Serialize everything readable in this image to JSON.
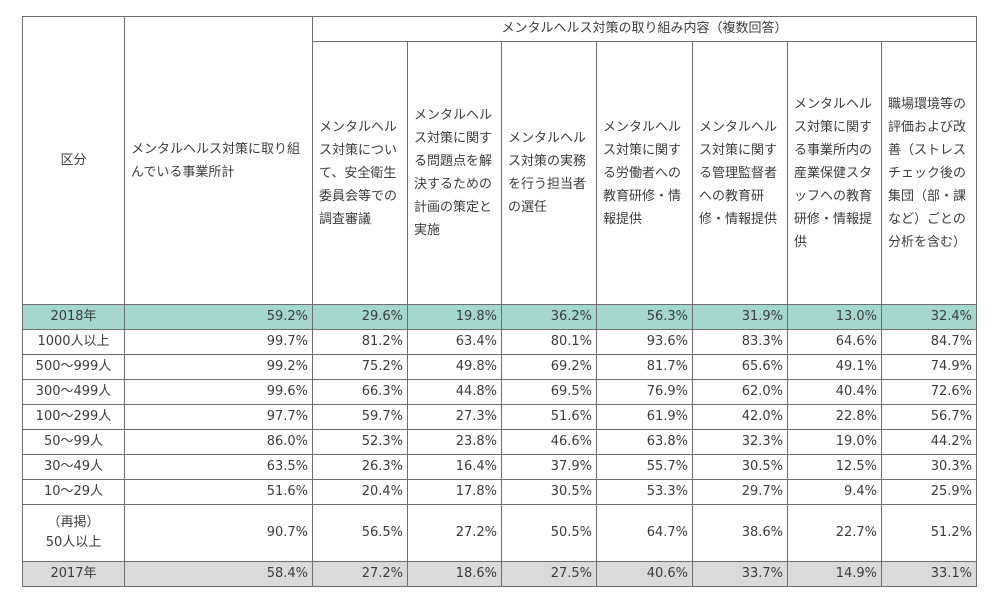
{
  "header": {
    "category": "区分",
    "total": "メンタルヘルス対策に取り組んでいる事業所計",
    "group": "メンタルヘルス対策の取り組み内容（複数回答）",
    "columns": [
      "メンタルヘルス対策について、安全衛生委員会等での調査審議",
      "メンタルヘルス対策に関する問題点を解決するための計画の策定と実施",
      "メンタルヘルス対策の実務を行う担当者の選任",
      "メンタルヘルス対策に関する労働者への教育研修・情報提供",
      "メンタルヘルス対策に関する管理監督者への教育研修・情報提供",
      "メンタルヘルス対策に関する事業所内の産業保健スタッフへの教育研修・情報提供",
      "職場環境等の評価および改善（ストレスチェック後の集団（部・課など）ごとの分析を含む）"
    ]
  },
  "colors": {
    "highlight_row": "#a4d8ce",
    "previous_year_row": "#dadada"
  },
  "rows": [
    {
      "label": "2018年",
      "values": [
        "59.2%",
        "29.6%",
        "19.8%",
        "36.2%",
        "56.3%",
        "31.9%",
        "13.0%",
        "32.4%"
      ]
    },
    {
      "label": "1000人以上",
      "values": [
        "99.7%",
        "81.2%",
        "63.4%",
        "80.1%",
        "93.6%",
        "83.3%",
        "64.6%",
        "84.7%"
      ]
    },
    {
      "label": "500～999人",
      "values": [
        "99.2%",
        "75.2%",
        "49.8%",
        "69.2%",
        "81.7%",
        "65.6%",
        "49.1%",
        "74.9%"
      ]
    },
    {
      "label": "300～499人",
      "values": [
        "99.6%",
        "66.3%",
        "44.8%",
        "69.5%",
        "76.9%",
        "62.0%",
        "40.4%",
        "72.6%"
      ]
    },
    {
      "label": "100～299人",
      "values": [
        "97.7%",
        "59.7%",
        "27.3%",
        "51.6%",
        "61.9%",
        "42.0%",
        "22.8%",
        "56.7%"
      ]
    },
    {
      "label": "50～99人",
      "values": [
        "86.0%",
        "52.3%",
        "23.8%",
        "46.6%",
        "63.8%",
        "32.3%",
        "19.0%",
        "44.2%"
      ]
    },
    {
      "label": "30～49人",
      "values": [
        "63.5%",
        "26.3%",
        "16.4%",
        "37.9%",
        "55.7%",
        "30.5%",
        "12.5%",
        "30.3%"
      ]
    },
    {
      "label": "10～29人",
      "values": [
        "51.6%",
        "20.4%",
        "17.8%",
        "30.5%",
        "53.3%",
        "29.7%",
        "9.4%",
        "25.9%"
      ]
    },
    {
      "label": "（再掲）\n50人以上",
      "values": [
        "90.7%",
        "56.5%",
        "27.2%",
        "50.5%",
        "64.7%",
        "38.6%",
        "22.7%",
        "51.2%"
      ]
    },
    {
      "label": "2017年",
      "values": [
        "58.4%",
        "27.2%",
        "18.6%",
        "27.5%",
        "40.6%",
        "33.7%",
        "14.9%",
        "33.1%"
      ]
    }
  ]
}
